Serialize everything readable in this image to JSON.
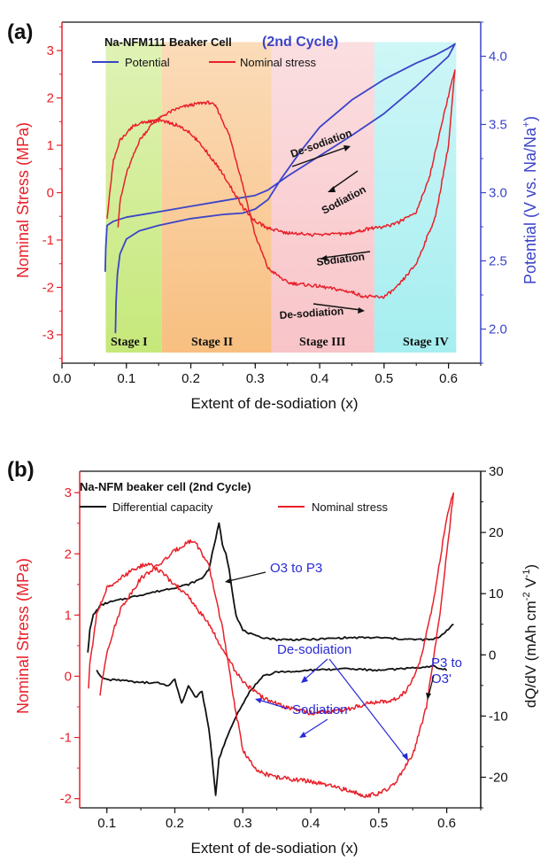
{
  "chart_data": [
    {
      "panel": "(a)",
      "type": "line",
      "title": "Na-NFM111 Beaker Cell",
      "subtitle": "(2nd Cycle)",
      "xlabel": "Extent of de-sodiation (x)",
      "ylabel": "Nominal Stress (MPa)",
      "y2label": "Potential (V vs. Na/Na",
      "y2label_sup": "+",
      "y2label_end": ")",
      "xlim": [
        0.0,
        0.65
      ],
      "ylim": [
        -3.6,
        3.6
      ],
      "y2lim": [
        1.75,
        4.25
      ],
      "xticks": [
        "0.0",
        "0.1",
        "0.2",
        "0.3",
        "0.4",
        "0.5",
        "0.6"
      ],
      "yticks": [
        "-3",
        "-2",
        "-1",
        "0",
        "1",
        "2",
        "3"
      ],
      "y2ticks": [
        "2.0",
        "2.5",
        "3.0",
        "3.5",
        "4.0"
      ],
      "legend": [
        {
          "label": "Potential",
          "color": "#3b44c8"
        },
        {
          "label": "Nominal stress",
          "color": "#e8202a"
        }
      ],
      "stages": [
        {
          "label": "Stage I",
          "x0": 0.068,
          "x1": 0.155,
          "color": "#c6e87a"
        },
        {
          "label": "Stage II",
          "x0": 0.155,
          "x1": 0.325,
          "color": "#f8bf80"
        },
        {
          "label": "Stage III",
          "x0": 0.325,
          "x1": 0.485,
          "color": "#f8c4c8"
        },
        {
          "label": "Stage IV",
          "x0": 0.485,
          "x1": 0.612,
          "color": "#a6eef0"
        }
      ],
      "annotations": [
        "De-sodiation",
        "Sodiation",
        "Sodiation",
        "De-sodiation"
      ],
      "series": [
        {
          "name": "Potential",
          "axis": "right",
          "color": "#3b44c8",
          "x": [
            0.083,
            0.084,
            0.086,
            0.09,
            0.1,
            0.12,
            0.15,
            0.2,
            0.25,
            0.28,
            0.3,
            0.32,
            0.34,
            0.37,
            0.4,
            0.45,
            0.5,
            0.55,
            0.58,
            0.6,
            0.61,
            0.6,
            0.55,
            0.5,
            0.45,
            0.4,
            0.35,
            0.32,
            0.3,
            0.25,
            0.2,
            0.15,
            0.1,
            0.08,
            0.07,
            0.068,
            0.067
          ],
          "y": [
            1.97,
            2.2,
            2.4,
            2.55,
            2.66,
            2.72,
            2.76,
            2.81,
            2.84,
            2.85,
            2.88,
            2.95,
            3.1,
            3.3,
            3.48,
            3.68,
            3.83,
            3.95,
            4.01,
            4.06,
            4.09,
            4.0,
            3.78,
            3.58,
            3.42,
            3.27,
            3.12,
            3.02,
            2.98,
            2.94,
            2.9,
            2.86,
            2.82,
            2.79,
            2.76,
            2.6,
            2.42
          ]
        },
        {
          "name": "Nominal stress (de-sodiation)",
          "axis": "left",
          "color": "#e8202a",
          "x": [
            0.087,
            0.09,
            0.1,
            0.12,
            0.14,
            0.16,
            0.18,
            0.2,
            0.22,
            0.23,
            0.24,
            0.26,
            0.28,
            0.3,
            0.32,
            0.35,
            0.4,
            0.45,
            0.47,
            0.5,
            0.52,
            0.55,
            0.58,
            0.6,
            0.61
          ],
          "y": [
            -0.7,
            -0.2,
            0.4,
            1.1,
            1.45,
            1.65,
            1.78,
            1.85,
            1.9,
            1.9,
            1.8,
            1.2,
            0.2,
            -0.9,
            -1.6,
            -1.9,
            -1.98,
            -2.1,
            -2.2,
            -2.2,
            -2.0,
            -1.5,
            -0.5,
            1.0,
            2.6
          ]
        },
        {
          "name": "Nominal stress (sodiation)",
          "axis": "left",
          "color": "#e8202a",
          "x": [
            0.61,
            0.59,
            0.57,
            0.55,
            0.52,
            0.5,
            0.48,
            0.45,
            0.4,
            0.35,
            0.32,
            0.3,
            0.28,
            0.25,
            0.22,
            0.2,
            0.18,
            0.16,
            0.15,
            0.13,
            0.11,
            0.09,
            0.08,
            0.075,
            0.07
          ],
          "y": [
            2.6,
            1.5,
            0.3,
            -0.4,
            -0.65,
            -0.72,
            -0.75,
            -0.85,
            -0.9,
            -0.85,
            -0.75,
            -0.6,
            -0.3,
            0.4,
            0.95,
            1.25,
            1.42,
            1.5,
            1.52,
            1.5,
            1.4,
            1.1,
            0.7,
            0.1,
            -0.55
          ]
        }
      ]
    },
    {
      "panel": "(b)",
      "type": "line",
      "title": "Na-NFM beaker cell (2nd Cycle)",
      "xlabel": "Extent of de-sodiation (x)",
      "ylabel": "Nominal Stress (MPa)",
      "y2label": "dQ/dV (mAh cm",
      "y2label_sup1": "-2",
      "y2label_mid": " V",
      "y2label_sup2": "-1",
      "y2label_end": ")",
      "xlim": [
        0.06,
        0.65
      ],
      "ylim": [
        -2.15,
        3.35
      ],
      "y2lim": [
        -25,
        30
      ],
      "xticks": [
        "0.1",
        "0.2",
        "0.3",
        "0.4",
        "0.5",
        "0.6"
      ],
      "yticks": [
        "-2",
        "-1",
        "0",
        "1",
        "2",
        "3"
      ],
      "y2ticks": [
        "-20",
        "-10",
        "0",
        "10",
        "20",
        "30"
      ],
      "legend": [
        {
          "label": "Differential capacity",
          "color": "#111111"
        },
        {
          "label": "Nominal stress",
          "color": "#e8202a"
        }
      ],
      "annotations": [
        "O3 to P3",
        "De-sodiation",
        "Sodiation",
        "P3 to",
        "O3'"
      ],
      "series": [
        {
          "name": "Differential capacity (de-sodiation)",
          "axis": "right",
          "color": "#111111",
          "x": [
            0.072,
            0.075,
            0.08,
            0.09,
            0.1,
            0.12,
            0.15,
            0.18,
            0.2,
            0.22,
            0.24,
            0.25,
            0.26,
            0.265,
            0.27,
            0.275,
            0.28,
            0.285,
            0.29,
            0.3,
            0.32,
            0.35,
            0.4,
            0.45,
            0.5,
            0.55,
            0.58,
            0.59,
            0.6,
            0.61
          ],
          "y": [
            0.5,
            4,
            6.5,
            8,
            8.5,
            9,
            9.8,
            10.5,
            11,
            11.5,
            12.5,
            14,
            19,
            21.5,
            18,
            16.5,
            14,
            10,
            6.5,
            4,
            3,
            2.5,
            2.5,
            2.8,
            2.8,
            2.5,
            2.5,
            3,
            4,
            5
          ]
        },
        {
          "name": "Differential capacity (sodiation)",
          "axis": "right",
          "color": "#111111",
          "x": [
            0.6,
            0.58,
            0.55,
            0.5,
            0.45,
            0.4,
            0.35,
            0.33,
            0.31,
            0.29,
            0.275,
            0.265,
            0.26,
            0.255,
            0.25,
            0.24,
            0.23,
            0.22,
            0.21,
            0.2,
            0.19,
            0.17,
            0.15,
            0.12,
            0.1,
            0.09,
            0.085
          ],
          "y": [
            -2.5,
            -1.8,
            -2.2,
            -2.5,
            -2.3,
            -2.5,
            -2.8,
            -3.5,
            -6,
            -10,
            -14,
            -17,
            -23,
            -17,
            -12,
            -6,
            -7,
            -5,
            -8,
            -4,
            -5,
            -4.5,
            -4.5,
            -4.2,
            -4,
            -3.5,
            -2.5
          ]
        },
        {
          "name": "Nominal stress (de-sodiation)",
          "axis": "left",
          "color": "#e8202a",
          "x": [
            0.09,
            0.1,
            0.12,
            0.15,
            0.18,
            0.2,
            0.22,
            0.23,
            0.25,
            0.27,
            0.29,
            0.3,
            0.32,
            0.35,
            0.4,
            0.45,
            0.48,
            0.5,
            0.52,
            0.55,
            0.57,
            0.59,
            0.6,
            0.61
          ],
          "y": [
            -0.3,
            0.4,
            1.1,
            1.6,
            1.85,
            2.05,
            2.2,
            2.2,
            1.8,
            0.8,
            -0.6,
            -1.2,
            -1.55,
            -1.65,
            -1.72,
            -1.85,
            -1.95,
            -1.92,
            -1.8,
            -1.3,
            -0.5,
            1.0,
            2.0,
            3.0
          ]
        },
        {
          "name": "Nominal stress (sodiation)",
          "axis": "left",
          "color": "#e8202a",
          "x": [
            0.61,
            0.6,
            0.58,
            0.56,
            0.54,
            0.52,
            0.5,
            0.48,
            0.45,
            0.4,
            0.36,
            0.33,
            0.3,
            0.28,
            0.25,
            0.22,
            0.2,
            0.18,
            0.16,
            0.14,
            0.12,
            0.1,
            0.085,
            0.075,
            0.073
          ],
          "y": [
            3.0,
            2.6,
            1.2,
            0.2,
            -0.25,
            -0.4,
            -0.42,
            -0.45,
            -0.55,
            -0.6,
            -0.5,
            -0.35,
            -0.1,
            0.25,
            0.85,
            1.3,
            1.5,
            1.7,
            1.85,
            1.75,
            1.6,
            1.45,
            1.0,
            0.2,
            -0.2
          ]
        }
      ]
    }
  ]
}
